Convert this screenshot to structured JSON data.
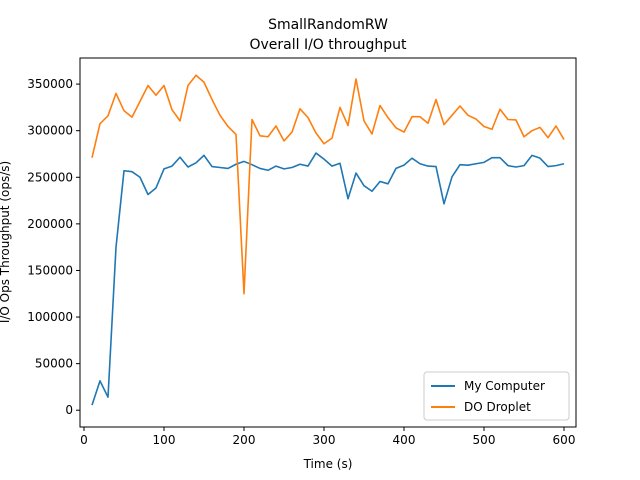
{
  "chart_data": {
    "type": "line",
    "title": "SmallRandomRW",
    "subtitle": "Overall I/O throughput",
    "xlabel": "Time (s)",
    "ylabel": "I/O Ops Throughput (ops/s)",
    "xlim": [
      -5,
      615
    ],
    "ylim": [
      -18000,
      378000
    ],
    "xticks": [
      0,
      100,
      200,
      300,
      400,
      500,
      600
    ],
    "yticks": [
      0,
      50000,
      100000,
      150000,
      200000,
      250000,
      300000,
      350000
    ],
    "grid": false,
    "legend_position": "lower-right",
    "x": [
      10,
      20,
      30,
      40,
      50,
      60,
      70,
      80,
      90,
      100,
      110,
      120,
      130,
      140,
      150,
      160,
      170,
      180,
      190,
      200,
      210,
      220,
      230,
      240,
      250,
      260,
      270,
      280,
      290,
      300,
      310,
      320,
      330,
      340,
      350,
      360,
      370,
      380,
      390,
      400,
      410,
      420,
      430,
      440,
      450,
      460,
      470,
      480,
      490,
      500,
      510,
      520,
      530,
      540,
      550,
      560,
      570,
      580,
      590,
      600
    ],
    "series": [
      {
        "name": "My Computer",
        "color": "#1f77b4",
        "values": [
          5500,
          31500,
          14000,
          175000,
          257000,
          256000,
          250000,
          231500,
          238500,
          259000,
          262000,
          271500,
          261000,
          265500,
          273500,
          261500,
          260500,
          259500,
          264000,
          267000,
          263500,
          259500,
          257500,
          262000,
          259000,
          260500,
          264000,
          262000,
          276000,
          269500,
          262000,
          265000,
          227000,
          254500,
          241000,
          235000,
          245500,
          243000,
          259500,
          263000,
          270500,
          264500,
          262000,
          261500,
          221500,
          250500,
          263500,
          263000,
          264500,
          266000,
          271000,
          271000,
          262500,
          261000,
          262500,
          273500,
          270500,
          261500,
          262500,
          264500
        ]
      },
      {
        "name": "DO Droplet",
        "color": "#ff7f0e",
        "values": [
          271000,
          307500,
          316000,
          340000,
          321500,
          314500,
          331500,
          348500,
          338000,
          348500,
          322500,
          310500,
          348500,
          359500,
          352000,
          333500,
          316500,
          304500,
          296000,
          125000,
          312000,
          294500,
          293500,
          305000,
          289000,
          298500,
          323500,
          314000,
          297500,
          286000,
          292000,
          325000,
          305500,
          355500,
          310500,
          296500,
          327000,
          314000,
          303000,
          298500,
          315000,
          315000,
          308000,
          333500,
          306500,
          316500,
          326500,
          316500,
          312500,
          304500,
          301500,
          323000,
          312000,
          311500,
          293500,
          300000,
          303500,
          292500,
          305000,
          290500
        ]
      }
    ]
  }
}
